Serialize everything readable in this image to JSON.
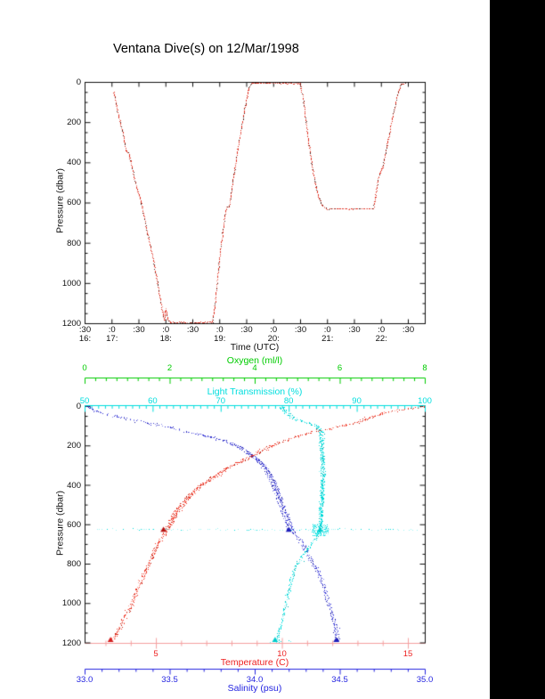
{
  "title": "Ventana Dive(s) on 12/Mar/1998",
  "page": {
    "bg": "#ffffff",
    "right_bar_color": "#000000"
  },
  "top_plot": {
    "xlabel": "Time (UTC)",
    "ylabel": "Pressure (dbar)",
    "x_minute_labels": [
      ":30",
      ":0",
      ":30",
      ":0",
      ":30",
      ":0",
      ":30",
      ":0",
      ":30",
      ":0",
      ":30",
      ":0",
      ":30"
    ],
    "x_hour_labels": [
      {
        "text": "16:",
        "tick": 0
      },
      {
        "text": "17:",
        "tick": 1
      },
      {
        "text": "18:",
        "tick": 3
      },
      {
        "text": "19:",
        "tick": 5
      },
      {
        "text": "20:",
        "tick": 7
      },
      {
        "text": "21:",
        "tick": 9
      },
      {
        "text": "22:",
        "tick": 11
      }
    ],
    "y_tick_labels": [
      "0",
      "200",
      "400",
      "600",
      "800",
      "1000",
      "1200"
    ],
    "y_tick_values": [
      0,
      200,
      400,
      600,
      800,
      1000,
      1200
    ],
    "curve_color": "#e03527"
  },
  "bottom_plot": {
    "ylabel": "Pressure (dbar)",
    "y_tick_labels": [
      "0",
      "200",
      "400",
      "600",
      "800",
      "1000",
      "1200"
    ],
    "y_tick_values": [
      0,
      200,
      400,
      600,
      800,
      1000,
      1200
    ],
    "axes": {
      "oxygen": {
        "title": "Oxygen (ml/l)",
        "color": "#00cc00",
        "tick_labels": [
          "0",
          "2",
          "4",
          "6",
          "8"
        ],
        "tick_values": [
          0,
          2,
          4,
          6,
          8
        ],
        "range": [
          0,
          8
        ]
      },
      "light": {
        "title": "Light Transmission (%)",
        "color": "#00dede",
        "tick_labels": [
          "50",
          "60",
          "70",
          "80",
          "90",
          "100"
        ],
        "tick_values": [
          50,
          60,
          70,
          80,
          90,
          100
        ],
        "range": [
          50,
          100
        ]
      },
      "temperature": {
        "title": "Temperature (C)",
        "color": "#ee2222",
        "line_color": "#f5a0a0",
        "tick_labels": [
          "5",
          "10",
          "15"
        ],
        "tick_values": [
          5,
          10,
          15
        ],
        "range": [
          2.17,
          15.67
        ]
      },
      "salinity": {
        "title": "Salinity (psu)",
        "color": "#2424e0",
        "tick_labels": [
          "33.0",
          "33.5",
          "34.0",
          "34.5",
          "35.0"
        ],
        "tick_values": [
          33.0,
          33.5,
          34.0,
          34.5,
          35.0
        ],
        "range": [
          33.0,
          35.0
        ]
      }
    }
  },
  "chart_data": [
    {
      "type": "line",
      "title": "Ventana Dive(s) on 12/Mar/1998",
      "xlabel": "Time (UTC)",
      "ylabel": "Pressure (dbar)",
      "xlim": [
        16.5,
        22.85
      ],
      "ylim": [
        1200,
        0
      ],
      "x_major_ticks_hours": [
        16.5,
        17.0,
        17.5,
        18.0,
        18.5,
        19.0,
        19.5,
        20.0,
        20.5,
        21.0,
        21.5,
        22.0,
        22.5
      ],
      "series": [
        {
          "name": "vehicle-depth",
          "color": "#e03527",
          "points_time_pressure": [
            [
              17.03,
              44
            ],
            [
              17.05,
              75
            ],
            [
              17.08,
              115
            ],
            [
              17.12,
              165
            ],
            [
              17.16,
              215
            ],
            [
              17.2,
              258
            ],
            [
              17.23,
              300
            ],
            [
              17.26,
              338
            ],
            [
              17.3,
              348
            ],
            [
              17.34,
              390
            ],
            [
              17.4,
              465
            ],
            [
              17.46,
              530
            ],
            [
              17.5,
              565
            ],
            [
              17.54,
              600
            ],
            [
              17.6,
              680
            ],
            [
              17.66,
              755
            ],
            [
              17.72,
              830
            ],
            [
              17.78,
              910
            ],
            [
              17.84,
              1000
            ],
            [
              17.9,
              1090
            ],
            [
              17.95,
              1160
            ],
            [
              17.97,
              1180
            ],
            [
              17.99,
              1125
            ],
            [
              18.01,
              1150
            ],
            [
              18.04,
              1185
            ],
            [
              18.08,
              1193
            ],
            [
              18.3,
              1192
            ],
            [
              18.6,
              1193
            ],
            [
              18.86,
              1191
            ],
            [
              18.9,
              1115
            ],
            [
              18.95,
              975
            ],
            [
              19.0,
              850
            ],
            [
              19.05,
              745
            ],
            [
              19.1,
              645
            ],
            [
              19.13,
              620
            ],
            [
              19.17,
              614
            ],
            [
              19.2,
              565
            ],
            [
              19.26,
              455
            ],
            [
              19.33,
              330
            ],
            [
              19.4,
              225
            ],
            [
              19.47,
              115
            ],
            [
              19.53,
              35
            ],
            [
              19.58,
              4
            ],
            [
              19.64,
              2
            ],
            [
              19.9,
              2
            ],
            [
              20.2,
              3
            ],
            [
              20.49,
              4
            ],
            [
              20.55,
              95
            ],
            [
              20.6,
              200
            ],
            [
              20.66,
              320
            ],
            [
              20.72,
              430
            ],
            [
              20.78,
              520
            ],
            [
              20.84,
              575
            ],
            [
              20.9,
              610
            ],
            [
              20.97,
              628
            ],
            [
              21.2,
              626
            ],
            [
              21.4,
              628
            ],
            [
              21.6,
              626
            ],
            [
              21.85,
              627
            ],
            [
              21.89,
              560
            ],
            [
              21.93,
              490
            ],
            [
              21.97,
              450
            ],
            [
              22.01,
              428
            ],
            [
              22.05,
              385
            ],
            [
              22.1,
              310
            ],
            [
              22.15,
              245
            ],
            [
              22.2,
              175
            ],
            [
              22.26,
              105
            ],
            [
              22.31,
              45
            ],
            [
              22.36,
              8
            ],
            [
              22.44,
              3
            ]
          ]
        }
      ]
    },
    {
      "type": "scatter",
      "ylabel": "Pressure (dbar)",
      "ylim": [
        1200,
        0
      ],
      "series": [
        {
          "name": "temperature",
          "axis": "temperature",
          "colors": [
            "#ef3b2b",
            "#ff9a8e",
            "#c41f10"
          ],
          "points_pressure_value": [
            [
              0,
              15.6
            ],
            [
              10,
              15.0
            ],
            [
              20,
              14.4
            ],
            [
              35,
              13.9
            ],
            [
              55,
              13.4
            ],
            [
              80,
              13.0
            ],
            [
              95,
              12.4
            ],
            [
              111,
              11.8
            ],
            [
              135,
              11.0
            ],
            [
              156,
              10.4
            ],
            [
              191,
              9.7
            ],
            [
              220,
              9.2
            ],
            [
              250,
              8.8
            ],
            [
              280,
              8.3
            ],
            [
              311,
              7.8
            ],
            [
              340,
              7.5
            ],
            [
              370,
              7.1
            ],
            [
              405,
              6.7
            ],
            [
              441,
              6.4
            ],
            [
              485,
              6.1
            ],
            [
              532,
              5.8
            ],
            [
              580,
              5.6
            ],
            [
              627,
              5.4
            ],
            [
              700,
              5.0
            ],
            [
              760,
              4.8
            ],
            [
              814,
              4.6
            ],
            [
              900,
              4.3
            ],
            [
              1000,
              4.0
            ],
            [
              1100,
              3.6
            ],
            [
              1191,
              3.2
            ]
          ]
        },
        {
          "name": "salinity",
          "axis": "salinity",
          "colors": [
            "#3b3bd6",
            "#8b8bec",
            "#1d1da8"
          ],
          "points_pressure_value": [
            [
              0,
              33.02
            ],
            [
              15,
              33.05
            ],
            [
              30,
              33.1
            ],
            [
              45,
              33.17
            ],
            [
              60,
              33.25
            ],
            [
              75,
              33.33
            ],
            [
              90,
              33.42
            ],
            [
              105,
              33.5
            ],
            [
              123,
              33.58
            ],
            [
              150,
              33.72
            ],
            [
              165,
              33.79
            ],
            [
              180,
              33.85
            ],
            [
              210,
              33.92
            ],
            [
              245,
              33.98
            ],
            [
              290,
              34.04
            ],
            [
              336,
              34.08
            ],
            [
              390,
              34.11
            ],
            [
              440,
              34.13
            ],
            [
              510,
              34.16
            ],
            [
              577,
              34.19
            ],
            [
              627,
              34.21
            ],
            [
              680,
              34.26
            ],
            [
              736,
              34.3
            ],
            [
              814,
              34.35
            ],
            [
              886,
              34.39
            ],
            [
              977,
              34.42
            ],
            [
              1055,
              34.45
            ],
            [
              1123,
              34.47
            ],
            [
              1191,
              34.48
            ]
          ]
        },
        {
          "name": "light-transmission",
          "axis": "light",
          "colors": [
            "#00dede",
            "#8ef7f7",
            "#00b8b8"
          ],
          "points_pressure_value": [
            [
              0,
              79.0
            ],
            [
              15,
              79.2
            ],
            [
              30,
              79.6
            ],
            [
              50,
              80.3
            ],
            [
              70,
              81.5
            ],
            [
              85,
              83.0
            ],
            [
              100,
              84.2
            ],
            [
              130,
              84.7
            ],
            [
              200,
              84.8
            ],
            [
              300,
              85.0
            ],
            [
              420,
              84.9
            ],
            [
              520,
              84.7
            ],
            [
              627,
              84.6
            ],
            [
              660,
              84.0
            ],
            [
              700,
              83.2
            ],
            [
              760,
              81.8
            ],
            [
              814,
              80.8
            ],
            [
              880,
              80.2
            ],
            [
              950,
              79.8
            ],
            [
              1020,
              79.3
            ],
            [
              1100,
              78.8
            ],
            [
              1160,
              78.3
            ],
            [
              1191,
              78.2
            ]
          ]
        }
      ],
      "park_scatter_lines": [
        {
          "name": "park-627",
          "axis": "light",
          "pressure": 623,
          "value_range": [
            50.5,
            99.5
          ],
          "colors": [
            "#9ff5f5",
            "#00dede"
          ]
        },
        {
          "name": "bottom-1191",
          "axis": "light",
          "pressure": 1191,
          "value_range": [
            76.5,
            80.5
          ],
          "colors": [
            "#66efef",
            "#00dede"
          ]
        }
      ],
      "end_markers": [
        {
          "axis": "temperature",
          "pressure": 627,
          "value": 5.3,
          "color": "#b51010"
        },
        {
          "axis": "salinity",
          "pressure": 627,
          "value": 34.2,
          "color": "#2020bb"
        },
        {
          "axis": "light",
          "pressure": 627,
          "value": 84.6,
          "color": "#00cccc"
        },
        {
          "axis": "temperature",
          "pressure": 1191,
          "value": 3.2,
          "color": "#d42020"
        },
        {
          "axis": "salinity",
          "pressure": 1191,
          "value": 34.48,
          "color": "#2020bb"
        },
        {
          "axis": "light",
          "pressure": 1191,
          "value": 78.0,
          "color": "#00cccc"
        }
      ]
    }
  ]
}
